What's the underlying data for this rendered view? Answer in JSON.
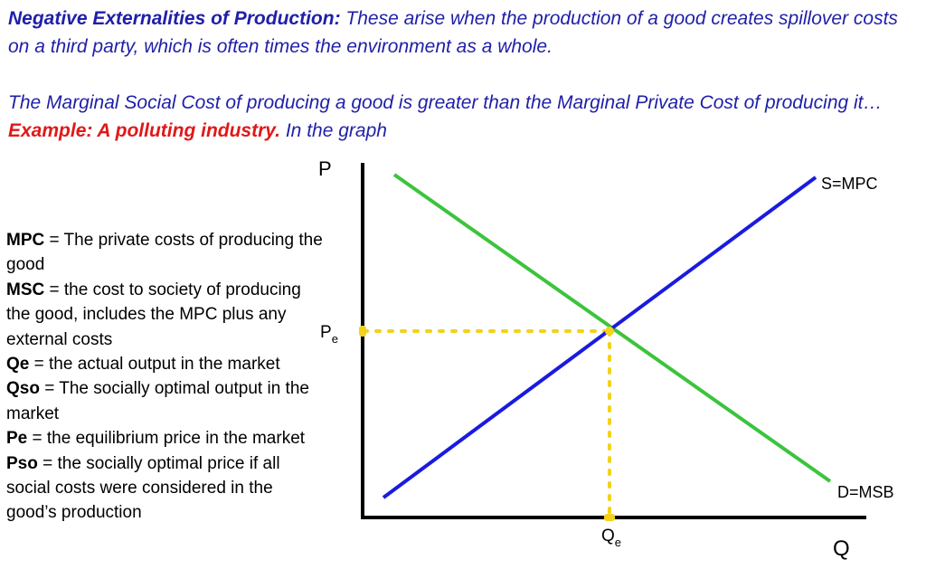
{
  "header": {
    "para1_title": "Negative Externalities of Production:",
    "para1_body": " These arise when the production of a good creates spillover costs on a third party, which is often times the environment as a whole.",
    "para2_body": "The Marginal Social Cost of producing a good is greater than the Marginal Private Cost of producing it… ",
    "para2_example": "Example: A polluting industry.",
    "para2_tail": " In the graph"
  },
  "definitions": [
    {
      "term": "MPC",
      "text": " = The private costs of producing the good"
    },
    {
      "term": "MSC",
      "text": " = the cost to society of producing the good, includes the MPC plus any external costs"
    },
    {
      "term": "Qe",
      "text": " = the actual output in the market"
    },
    {
      "term": "Qso",
      "text": " = The socially optimal output in the market"
    },
    {
      "term": "Pe",
      "text": " = the equilibrium price in the market"
    },
    {
      "term": "Pso",
      "text": " = the socially optimal price if all social costs were considered in the good’s production"
    }
  ],
  "graph": {
    "y_axis_label": "P",
    "x_axis_label": "Q",
    "price_label": {
      "main": "P",
      "sub": "e"
    },
    "quantity_label": {
      "main": "Q",
      "sub": "e"
    },
    "supply_label": "S=MPC",
    "demand_label": "D=MSB",
    "colors": {
      "supply": "#1a1ae0",
      "demand": "#3cc43c",
      "guide": "#f2d21c",
      "intro_text": "#1f1fa8",
      "example": "#e01818"
    }
  }
}
